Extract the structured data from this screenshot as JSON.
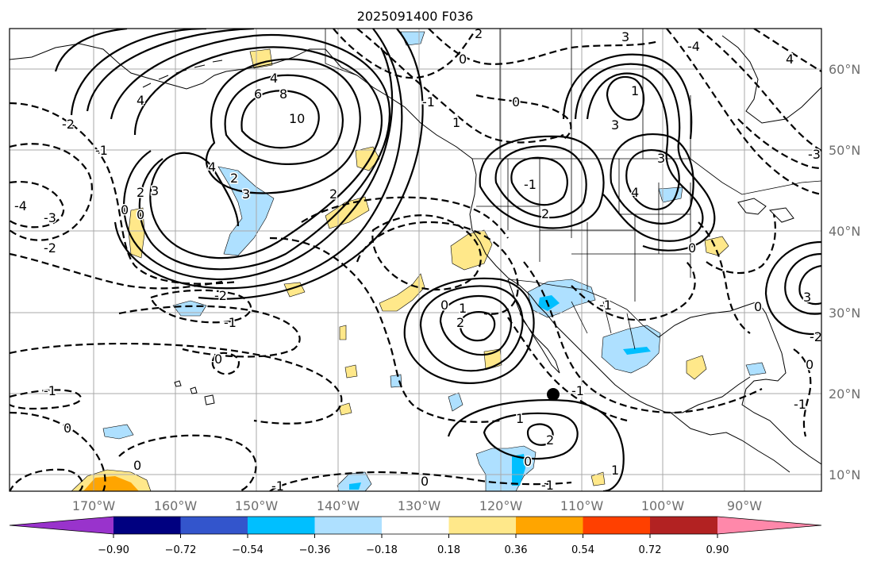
{
  "title": "2025091400 F036",
  "map": {
    "lon_ticks": [
      "170°W",
      "160°W",
      "150°W",
      "140°W",
      "130°W",
      "120°W",
      "110°W",
      "100°W",
      "90°W"
    ],
    "lat_ticks": [
      "60°N",
      "50°N",
      "40°N",
      "30°N",
      "20°N",
      "10°N"
    ],
    "gridlines": true
  },
  "contour_labels": [
    {
      "id": "l1",
      "text": "2"
    },
    {
      "id": "l2",
      "text": "3"
    },
    {
      "id": "l3",
      "text": "4"
    },
    {
      "id": "l4",
      "text": "6"
    },
    {
      "id": "l5",
      "text": "8"
    },
    {
      "id": "l6",
      "text": "10"
    },
    {
      "id": "l7",
      "text": "4"
    },
    {
      "id": "l8",
      "text": "4"
    },
    {
      "id": "l9",
      "text": "3"
    },
    {
      "id": "l10",
      "text": "2"
    },
    {
      "id": "l11",
      "text": "0"
    },
    {
      "id": "l12",
      "text": "0"
    },
    {
      "id": "l13",
      "text": "-1"
    },
    {
      "id": "l14",
      "text": "-2"
    },
    {
      "id": "l15",
      "text": "-2"
    },
    {
      "id": "l16",
      "text": "-3"
    },
    {
      "id": "l17",
      "text": "-4"
    },
    {
      "id": "l18",
      "text": "-2"
    },
    {
      "id": "l19",
      "text": "-1"
    },
    {
      "id": "l20",
      "text": "0"
    },
    {
      "id": "l21",
      "text": "-1"
    },
    {
      "id": "l22",
      "text": "0"
    },
    {
      "id": "l23",
      "text": "0"
    },
    {
      "id": "l24",
      "text": "-1"
    },
    {
      "id": "l25",
      "text": "2"
    },
    {
      "id": "l26",
      "text": "0"
    },
    {
      "id": "l27",
      "text": "1"
    },
    {
      "id": "l28",
      "text": "-1"
    },
    {
      "id": "l29",
      "text": "1"
    },
    {
      "id": "l30",
      "text": "2"
    },
    {
      "id": "l31",
      "text": "0"
    },
    {
      "id": "l32",
      "text": "-1"
    },
    {
      "id": "l33",
      "text": "0"
    },
    {
      "id": "l34",
      "text": "1"
    },
    {
      "id": "l35",
      "text": "3"
    },
    {
      "id": "l36",
      "text": "1"
    },
    {
      "id": "l37",
      "text": "2"
    },
    {
      "id": "l38",
      "text": "4"
    },
    {
      "id": "l39",
      "text": "3"
    },
    {
      "id": "l40",
      "text": "2"
    },
    {
      "id": "l41",
      "text": "0"
    },
    {
      "id": "l42",
      "text": "2"
    },
    {
      "id": "l43",
      "text": "3"
    },
    {
      "id": "l44",
      "text": "0"
    },
    {
      "id": "l45",
      "text": "-4"
    },
    {
      "id": "l46",
      "text": "-1"
    },
    {
      "id": "l47",
      "text": "0"
    },
    {
      "id": "l48",
      "text": "-1"
    },
    {
      "id": "l49",
      "text": "3"
    },
    {
      "id": "l50",
      "text": "-1"
    },
    {
      "id": "l51",
      "text": "0"
    },
    {
      "id": "l52",
      "text": "-2"
    },
    {
      "id": "l53",
      "text": "0"
    },
    {
      "id": "l54",
      "text": "-3"
    },
    {
      "id": "l55",
      "text": "4"
    },
    {
      "id": "l56",
      "text": "-1"
    },
    {
      "id": "l57",
      "text": "1"
    }
  ],
  "colorbar": {
    "labels": [
      "−0.90",
      "−0.72",
      "−0.54",
      "−0.36",
      "−0.18",
      "0.18",
      "0.36",
      "0.54",
      "0.72",
      "0.90"
    ],
    "colors": [
      "#9933cc",
      "#000080",
      "#3355cc",
      "#00bfff",
      "#aee0ff",
      "#ffffff",
      "#ffe88a",
      "#ffa500",
      "#ff4000",
      "#b22222",
      "#ff88aa"
    ],
    "under_color": "#9933cc",
    "over_color": "#ff88aa"
  },
  "shading_colors": {
    "light_yellow": "#ffe88a",
    "orange": "#ffa500",
    "light_blue": "#aee0ff",
    "blue": "#00bfff"
  },
  "marker": {
    "lon": -113,
    "lat": 19.5,
    "color": "#000000"
  }
}
